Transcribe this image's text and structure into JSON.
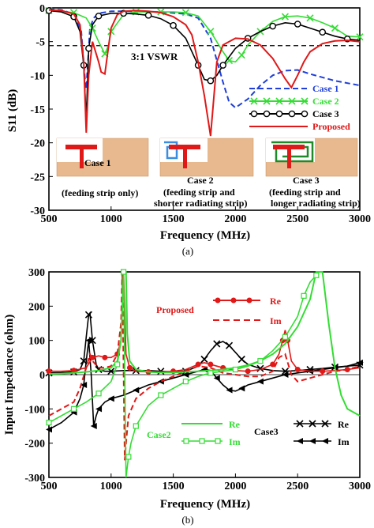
{
  "chart_data": [
    {
      "type": "line",
      "panel_label": "(a)",
      "xlabel": "Frequency (MHz)",
      "ylabel": "S11 (dB)",
      "xlim": [
        500,
        3000
      ],
      "ylim": [
        -30,
        0
      ],
      "xticks": [
        500,
        1000,
        1500,
        2000,
        2500,
        3000
      ],
      "yticks": [
        0,
        -5,
        -10,
        -15,
        -20,
        -25,
        -30
      ],
      "annotation": "3:1 VSWR",
      "vswr_level": -5.6,
      "legend_position": "right",
      "series": [
        {
          "name": "Case 1",
          "color": "#1f3fd8",
          "style": "dashed",
          "x": [
            500,
            600,
            700,
            760,
            790,
            800,
            810,
            830,
            860,
            900,
            1000,
            1200,
            1400,
            1600,
            1700,
            1800,
            1900,
            1950,
            2000,
            2100,
            2200,
            2300,
            2400,
            2500,
            2600,
            2800,
            3000
          ],
          "y": [
            -0.2,
            -0.3,
            -0.9,
            -3.5,
            -10.5,
            -12,
            -9,
            -3,
            -1.5,
            -0.8,
            -0.5,
            -0.5,
            -0.6,
            -0.9,
            -1.5,
            -4.5,
            -11,
            -14,
            -14.8,
            -13.5,
            -11.5,
            -10,
            -9.3,
            -9.2,
            -9.8,
            -10.8,
            -11.5
          ]
        },
        {
          "name": "Case 2",
          "color": "#33dd33",
          "style": "x-markers",
          "x": [
            500,
            600,
            700,
            800,
            850,
            900,
            950,
            980,
            1000,
            1100,
            1200,
            1300,
            1400,
            1500,
            1600,
            1700,
            1800,
            1900,
            1950,
            2000,
            2050,
            2100,
            2200,
            2300,
            2400,
            2500,
            2600,
            2700,
            2800,
            2900,
            3000
          ],
          "y": [
            -0.4,
            -0.5,
            -0.7,
            -1.5,
            -3,
            -5,
            -6.8,
            -5.5,
            -3.5,
            -1,
            -0.6,
            -0.6,
            -0.6,
            -0.6,
            -0.7,
            -1.2,
            -3.5,
            -6.5,
            -7.8,
            -8,
            -7,
            -5.5,
            -3.5,
            -2,
            -1.3,
            -1.2,
            -1.5,
            -2.2,
            -3,
            -4.2,
            -4.3
          ]
        },
        {
          "name": "Case 3",
          "color": "#000000",
          "style": "o-markers",
          "x": [
            500,
            600,
            700,
            750,
            780,
            800,
            820,
            850,
            900,
            1000,
            1100,
            1200,
            1300,
            1400,
            1500,
            1600,
            1700,
            1750,
            1800,
            1850,
            1900,
            2000,
            2100,
            2200,
            2300,
            2400,
            2500,
            2600,
            2700,
            2800,
            2900,
            3000
          ],
          "y": [
            -0.4,
            -0.6,
            -1.3,
            -3.5,
            -8.5,
            -16.5,
            -6,
            -2.5,
            -1.2,
            -0.8,
            -0.8,
            -0.9,
            -1.1,
            -1.6,
            -2.6,
            -4.5,
            -8.5,
            -10.6,
            -10.8,
            -10,
            -8.5,
            -6,
            -4.5,
            -3.5,
            -2.7,
            -2.2,
            -2.4,
            -3,
            -3.6,
            -4.2,
            -4.6,
            -4.8
          ]
        },
        {
          "name": "Proposed",
          "color": "#e01818",
          "style": "solid",
          "x": [
            500,
            600,
            700,
            750,
            780,
            800,
            820,
            850,
            900,
            920,
            950,
            970,
            1000,
            1050,
            1100,
            1200,
            1300,
            1400,
            1500,
            1600,
            1650,
            1700,
            1750,
            1800,
            1850,
            1900,
            2000,
            2100,
            2200,
            2300,
            2400,
            2450,
            2500,
            2550,
            2600,
            2700,
            2800,
            2900,
            3000
          ],
          "y": [
            -0.3,
            -0.4,
            -0.9,
            -2.5,
            -8,
            -18.5,
            -10,
            -5,
            -8,
            -9.5,
            -9.8,
            -7,
            -3,
            -1,
            -0.5,
            -0.4,
            -0.5,
            -0.7,
            -1.3,
            -2.5,
            -4,
            -8,
            -13,
            -19,
            -8,
            -5.5,
            -4.5,
            -4.6,
            -5.5,
            -7.5,
            -10.5,
            -11.8,
            -10,
            -8,
            -6.5,
            -5.3,
            -4.9,
            -4.8,
            -5
          ]
        }
      ],
      "insets": [
        {
          "name": "Case 1",
          "caption": "(feeding strip only)"
        },
        {
          "name": "Case 2",
          "caption": [
            "(feeding strip and",
            "shorter radiating strip)"
          ]
        },
        {
          "name": "Case 3",
          "caption": [
            "(feeding strip and",
            "longer radiating strip)"
          ]
        }
      ]
    },
    {
      "type": "line",
      "panel_label": "(b)",
      "xlabel": "Frequency (MHz)",
      "ylabel": "Input Impedance (ohm)",
      "xlim": [
        500,
        3000
      ],
      "ylim": [
        -300,
        300
      ],
      "xticks": [
        500,
        1000,
        1500,
        2000,
        2500,
        3000
      ],
      "yticks": [
        300,
        200,
        100,
        0,
        -100,
        -200,
        -300
      ],
      "legend_groups": [
        {
          "name": "Proposed",
          "color": "#e01818",
          "labels": [
            "Re",
            "Im"
          ]
        },
        {
          "name": "Case2",
          "color": "#33dd33",
          "labels": [
            "Re",
            "Im"
          ]
        },
        {
          "name": "Case3",
          "color": "#000000",
          "labels": [
            "Re",
            "Im"
          ]
        }
      ],
      "series": [
        {
          "name": "Case3 Re",
          "color": "#000000",
          "style": "x-markers",
          "x": [
            500,
            600,
            700,
            750,
            780,
            800,
            820,
            830,
            850,
            880,
            900,
            950,
            1000,
            1100,
            1200,
            1300,
            1400,
            1500,
            1600,
            1700,
            1750,
            1800,
            1850,
            1900,
            1950,
            2000,
            2050,
            2100,
            2200,
            2300,
            2400,
            2500,
            2600,
            2700,
            2800,
            2900,
            3000
          ],
          "y": [
            5,
            6,
            8,
            15,
            40,
            110,
            175,
            180,
            100,
            30,
            15,
            10,
            10,
            12,
            12,
            12,
            10,
            8,
            10,
            25,
            45,
            70,
            90,
            97,
            85,
            65,
            45,
            30,
            18,
            12,
            10,
            12,
            15,
            18,
            22,
            25,
            28
          ]
        },
        {
          "name": "Case3 Im",
          "color": "#000000",
          "style": "triangle-markers",
          "x": [
            500,
            600,
            700,
            750,
            780,
            800,
            820,
            840,
            860,
            880,
            900,
            950,
            1000,
            1100,
            1200,
            1300,
            1400,
            1500,
            1600,
            1700,
            1750,
            1800,
            1850,
            1900,
            1950,
            2000,
            2050,
            2100,
            2200,
            2300,
            2400,
            2500,
            2600,
            2700,
            2800,
            2900,
            3000
          ],
          "y": [
            -160,
            -140,
            -110,
            -70,
            -30,
            40,
            100,
            0,
            -150,
            -120,
            -100,
            -80,
            -70,
            -60,
            -45,
            -30,
            -20,
            -10,
            0,
            10,
            15,
            12,
            -10,
            -30,
            -45,
            -48,
            -40,
            -30,
            -20,
            -10,
            0,
            5,
            10,
            15,
            20,
            25,
            35
          ]
        },
        {
          "name": "Proposed Re",
          "color": "#e01818",
          "style": "circle-markers",
          "x": [
            500,
            600,
            700,
            800,
            850,
            900,
            950,
            1000,
            1050,
            1080,
            1100,
            1120,
            1150,
            1200,
            1300,
            1400,
            1500,
            1600,
            1700,
            1750,
            1800,
            1850,
            1900,
            2000,
            2100,
            2200,
            2300,
            2350,
            2380,
            2400,
            2420,
            2450,
            2500,
            2600,
            2700,
            2800,
            2900,
            3000
          ],
          "y": [
            10,
            10,
            12,
            20,
            50,
            55,
            50,
            50,
            60,
            100,
            300,
            60,
            20,
            10,
            8,
            8,
            10,
            15,
            30,
            35,
            30,
            25,
            20,
            12,
            10,
            15,
            30,
            60,
            100,
            130,
            100,
            40,
            15,
            10,
            10,
            12,
            15,
            20
          ]
        },
        {
          "name": "Proposed Im",
          "color": "#e01818",
          "style": "dashed",
          "x": [
            500,
            600,
            700,
            750,
            800,
            830,
            850,
            900,
            950,
            1000,
            1050,
            1080,
            1090,
            1110,
            1120,
            1140,
            1200,
            1300,
            1400,
            1500,
            1600,
            1700,
            1800,
            1900,
            2000,
            2100,
            2200,
            2300,
            2350,
            2400,
            2450,
            2500,
            2600,
            2700,
            2800,
            2900,
            3000
          ],
          "y": [
            -120,
            -100,
            -80,
            -40,
            20,
            60,
            40,
            20,
            20,
            25,
            60,
            150,
            300,
            -250,
            -200,
            -120,
            -70,
            -40,
            -20,
            -5,
            10,
            25,
            20,
            5,
            0,
            -5,
            -5,
            10,
            50,
            60,
            0,
            -20,
            -10,
            0,
            10,
            15,
            25
          ]
        },
        {
          "name": "Case2 Re",
          "color": "#33dd33",
          "style": "solid",
          "x": [
            500,
            600,
            700,
            800,
            900,
            1000,
            1050,
            1080,
            1100,
            1110,
            1120,
            1130,
            1150,
            1200,
            1300,
            1400,
            1500,
            1600,
            1700,
            1800,
            1900,
            2000,
            2100,
            2200,
            2300,
            2400,
            2500,
            2600,
            2650,
            2700,
            2750,
            2800,
            2850,
            2900,
            3000
          ],
          "y": [
            2,
            3,
            5,
            8,
            12,
            20,
            40,
            100,
            300,
            300,
            300,
            120,
            40,
            15,
            8,
            6,
            6,
            8,
            10,
            12,
            15,
            20,
            28,
            40,
            60,
            90,
            140,
            220,
            300,
            300,
            150,
            20,
            -60,
            -100,
            -120
          ]
        },
        {
          "name": "Case2 Im",
          "color": "#33dd33",
          "style": "square-markers",
          "x": [
            500,
            600,
            700,
            800,
            900,
            1000,
            1050,
            1080,
            1100,
            1120,
            1140,
            1160,
            1200,
            1300,
            1400,
            1500,
            1600,
            1700,
            1800,
            1900,
            2000,
            2100,
            2200,
            2300,
            2400,
            2500,
            2550,
            2600,
            2650
          ],
          "y": [
            -140,
            -120,
            -100,
            -80,
            -55,
            -20,
            30,
            100,
            300,
            -300,
            -240,
            -200,
            -150,
            -90,
            -60,
            -40,
            -20,
            -5,
            5,
            10,
            15,
            25,
            40,
            70,
            110,
            170,
            230,
            270,
            290
          ]
        }
      ]
    }
  ]
}
